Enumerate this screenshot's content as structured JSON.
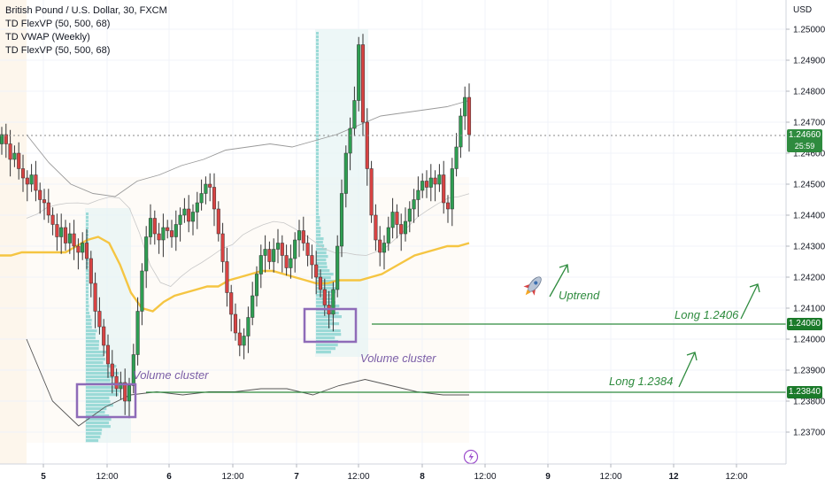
{
  "legend": {
    "symbol": "British Pound / U.S. Dollar, 30, FXCM",
    "ind1": "TD FlexVP (50, 500, 68)",
    "ind2": "TD VWAP (Weekly)",
    "ind3": "TD FlexVP (50, 500, 68)"
  },
  "currency": "USD",
  "current_price": {
    "value": "1.24660",
    "countdown": "25:59",
    "color": "#2e8b3e"
  },
  "level_tags": [
    {
      "value": "1.24060",
      "color": "#1b7a2a"
    },
    {
      "value": "1.23840",
      "color": "#1b7a2a"
    }
  ],
  "annotations": {
    "cluster1": "Volume cluster",
    "cluster2": "Volume cluster",
    "uptrend": "Uptrend",
    "long1": "Long 1.2406",
    "long2": "Long 1.2384"
  },
  "icons": {
    "rocket": "rocket-icon",
    "lightning": "lightning-icon"
  },
  "colors": {
    "up": "#26a69a",
    "down": "#ef5350",
    "candle_body_up": "#2e9e52",
    "candle_body_down": "#d84343",
    "vwap": "#f5c542",
    "levels": "#2e8b3e",
    "cluster_box": "#8e6bb8"
  },
  "chart_data": {
    "type": "candlestick",
    "title": "British Pound / U.S. Dollar, 30, FXCM",
    "y_ticks": [
      "1.25000",
      "1.24900",
      "1.24800",
      "1.24700",
      "1.24600",
      "1.24500",
      "1.24400",
      "1.24300",
      "1.24200",
      "1.24100",
      "1.24000",
      "1.23900",
      "1.23800",
      "1.23700"
    ],
    "x_ticks": [
      "5",
      "12:00",
      "6",
      "12:00",
      "7",
      "12:00",
      "8",
      "12:00",
      "9",
      "12:00",
      "12",
      "12:00"
    ],
    "ylim": [
      1.2364,
      1.2512
    ],
    "closes": [
      1.2466,
      1.2463,
      1.2458,
      1.246,
      1.2455,
      1.2452,
      1.245,
      1.2453,
      1.2448,
      1.2445,
      1.2444,
      1.244,
      1.2437,
      1.2433,
      1.2436,
      1.2431,
      1.2434,
      1.243,
      1.2428,
      1.2431,
      1.2426,
      1.2418,
      1.2409,
      1.2404,
      1.2398,
      1.2392,
      1.2388,
      1.2384,
      1.2386,
      1.238,
      1.2385,
      1.2395,
      1.2409,
      1.2422,
      1.2433,
      1.2439,
      1.2434,
      1.2432,
      1.2436,
      1.2435,
      1.2433,
      1.2437,
      1.244,
      1.2442,
      1.2438,
      1.2441,
      1.2444,
      1.2447,
      1.245,
      1.2449,
      1.2442,
      1.2434,
      1.2425,
      1.2415,
      1.2408,
      1.2402,
      1.2398,
      1.2401,
      1.2407,
      1.2414,
      1.2421,
      1.2427,
      1.2429,
      1.2425,
      1.2429,
      1.2431,
      1.2427,
      1.2423,
      1.2426,
      1.2432,
      1.2435,
      1.2431,
      1.2427,
      1.2424,
      1.242,
      1.2416,
      1.2411,
      1.2408,
      1.2416,
      1.243,
      1.2447,
      1.246,
      1.2468,
      1.2477,
      1.2495,
      1.247,
      1.2455,
      1.244,
      1.2432,
      1.2428,
      1.2431,
      1.2436,
      1.2441,
      1.2437,
      1.2434,
      1.2438,
      1.2442,
      1.2445,
      1.2448,
      1.2451,
      1.2449,
      1.2452,
      1.245,
      1.2453,
      1.2444,
      1.2442,
      1.2455,
      1.2462,
      1.2472,
      1.2478,
      1.2466
    ],
    "vwap": [
      1.2427,
      1.2427,
      1.2428,
      1.2428,
      1.2428,
      1.2428,
      1.2428,
      1.243,
      1.2432,
      1.2433,
      1.2431,
      1.2424,
      1.2415,
      1.241,
      1.2409,
      1.2412,
      1.2414,
      1.2415,
      1.2416,
      1.2417,
      1.2417,
      1.2419,
      1.242,
      1.2421,
      1.2422,
      1.2422,
      1.2421,
      1.242,
      1.2419,
      1.2418,
      1.2418,
      1.2419,
      1.2419,
      1.2419,
      1.242,
      1.2421,
      1.2423,
      1.2425,
      1.2427,
      1.2428,
      1.2429,
      1.243,
      1.243,
      1.2431
    ],
    "upper_band": [
      1.2466,
      1.2457,
      1.245,
      1.2447,
      1.2446,
      1.2451,
      1.2453,
      1.2456,
      1.2458,
      1.2461,
      1.2462,
      1.2463,
      1.2462,
      1.2464,
      1.2466,
      1.2469,
      1.2472,
      1.2473,
      1.2474,
      1.2475,
      1.2477
    ],
    "lower_band": [
      1.24,
      1.238,
      1.2372,
      1.2378,
      1.2382,
      1.2383,
      1.2382,
      1.2383,
      1.2383,
      1.2384,
      1.2384,
      1.2382,
      1.2385,
      1.2387,
      1.2385,
      1.2383,
      1.2382,
      1.2382
    ],
    "levels": [
      {
        "label": "Long 1.2406",
        "value": 1.2406
      },
      {
        "label": "Long 1.2384",
        "value": 1.2384
      }
    ],
    "last_price": 1.2466,
    "grid": true
  }
}
